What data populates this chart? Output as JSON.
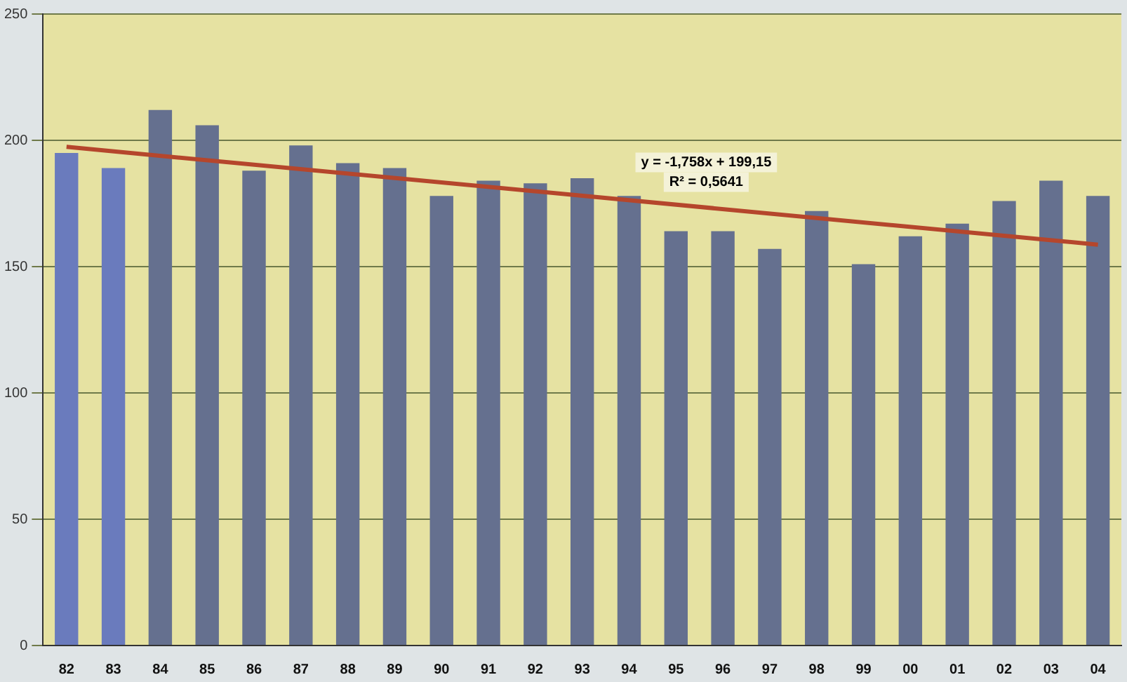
{
  "chart_data": {
    "type": "bar",
    "categories": [
      "82",
      "83",
      "84",
      "85",
      "86",
      "87",
      "88",
      "89",
      "90",
      "91",
      "92",
      "93",
      "94",
      "95",
      "96",
      "97",
      "98",
      "99",
      "00",
      "01",
      "02",
      "03",
      "04"
    ],
    "series": [
      {
        "colors": [
          "#6a7bbd",
          "#6a7bbd",
          "#65708f",
          "#65708f",
          "#65708f",
          "#65708f",
          "#65708f",
          "#65708f",
          "#65708f",
          "#65708f",
          "#65708f",
          "#65708f",
          "#65708f",
          "#65708f",
          "#65708f",
          "#65708f",
          "#65708f",
          "#65708f",
          "#65708f",
          "#65708f",
          "#65708f",
          "#65708f",
          "#65708f"
        ],
        "values": [
          195,
          189,
          212,
          206,
          188,
          198,
          191,
          189,
          178,
          184,
          183,
          185,
          178,
          164,
          164,
          157,
          172,
          151,
          162,
          167,
          176,
          184,
          178
        ]
      },
      {
        "type": "line",
        "color": "#b5462c",
        "x": [
          "82",
          "04"
        ],
        "values": [
          197.4,
          158.7
        ]
      }
    ],
    "ylim": [
      0,
      250
    ],
    "yticks": [
      0,
      50,
      100,
      150,
      200,
      250
    ],
    "grid": "y",
    "legend": false,
    "marker": "none",
    "annotations": [
      "y = -1,758x + 199,15",
      "R² = 0,5641"
    ]
  }
}
